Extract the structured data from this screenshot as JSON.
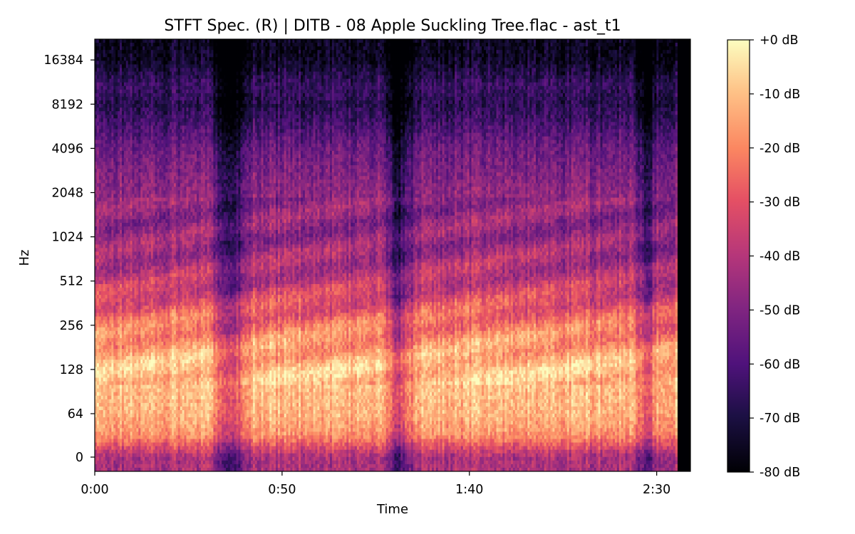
{
  "chart_data": {
    "type": "heatmap",
    "title": "STFT Spec. (R) | DITB - 08 Apple Suckling Tree.flac - ast_t1",
    "xlabel": "Time",
    "ylabel": "Hz",
    "x_axis": {
      "unit": "seconds",
      "range": [
        0,
        159
      ],
      "ticks": [
        {
          "value": 0,
          "label": "0:00"
        },
        {
          "value": 50,
          "label": "0:50"
        },
        {
          "value": 100,
          "label": "1:40"
        },
        {
          "value": 150,
          "label": "2:30"
        }
      ]
    },
    "y_axis": {
      "scale": "log2",
      "unit": "Hz",
      "ticks": [
        {
          "value": 0,
          "label": "0"
        },
        {
          "value": 64,
          "label": "64"
        },
        {
          "value": 128,
          "label": "128"
        },
        {
          "value": 256,
          "label": "256"
        },
        {
          "value": 512,
          "label": "512"
        },
        {
          "value": 1024,
          "label": "1024"
        },
        {
          "value": 2048,
          "label": "2048"
        },
        {
          "value": 4096,
          "label": "4096"
        },
        {
          "value": 8192,
          "label": "8192"
        },
        {
          "value": 16384,
          "label": "16384"
        }
      ]
    },
    "colorbar": {
      "colormap": "magma",
      "range": [
        -80,
        0
      ],
      "ticks": [
        {
          "value": 0,
          "label": "+0 dB"
        },
        {
          "value": -10,
          "label": "-10 dB"
        },
        {
          "value": -20,
          "label": "-20 dB"
        },
        {
          "value": -30,
          "label": "-30 dB"
        },
        {
          "value": -40,
          "label": "-40 dB"
        },
        {
          "value": -50,
          "label": "-50 dB"
        },
        {
          "value": -60,
          "label": "-60 dB"
        },
        {
          "value": -70,
          "label": "-70 dB"
        },
        {
          "value": -80,
          "label": "-80 dB"
        }
      ]
    },
    "audio_end_seconds": 155.5,
    "band_levels_db": [
      {
        "freq": 0,
        "db": -42
      },
      {
        "freq": 32,
        "db": -18
      },
      {
        "freq": 64,
        "db": -12
      },
      {
        "freq": 128,
        "db": -9
      },
      {
        "freq": 256,
        "db": -22
      },
      {
        "freq": 512,
        "db": -38
      },
      {
        "freq": 1024,
        "db": -46
      },
      {
        "freq": 2048,
        "db": -47
      },
      {
        "freq": 4096,
        "db": -54
      },
      {
        "freq": 8192,
        "db": -68
      },
      {
        "freq": 11000,
        "db": -64
      },
      {
        "freq": 16384,
        "db": -75
      },
      {
        "freq": 22050,
        "db": -76
      }
    ],
    "quiet_segments_seconds": [
      {
        "time": 36,
        "width": 2.0
      },
      {
        "time": 81,
        "width": 1.8
      },
      {
        "time": 147,
        "width": 1.2
      }
    ]
  }
}
